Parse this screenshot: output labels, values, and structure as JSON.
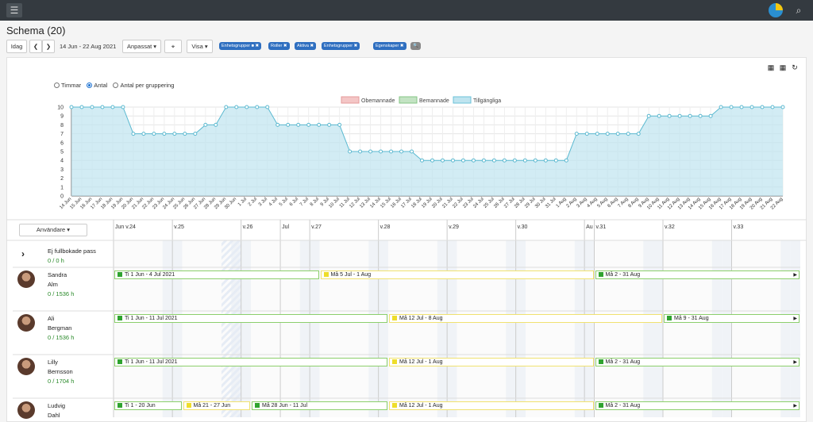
{
  "topbar": {
    "menu_icon": "hamburger-icon",
    "app_icon": "pie-chart-icon",
    "search_icon": "search-icon"
  },
  "page": {
    "title": "Schema (20)"
  },
  "toolbar": {
    "today": "Idag",
    "prev": "❮",
    "next": "❯",
    "date_range": "14 Jun - 22 Aug 2021",
    "custom": "Anpassat ▾",
    "target": "⌖",
    "show": "Visa ▾"
  },
  "filters": [
    {
      "label": "Enhetsgrupper ■ ✖"
    },
    {
      "label": "Roller ✖"
    },
    {
      "label": "Aktiva ✖"
    },
    {
      "label": "Enhetsgrupper ✖"
    },
    {
      "label": "Egenskaper ✖"
    },
    {
      "label": "🔍"
    }
  ],
  "panel_icons": {
    "calendar_add": "▦",
    "calendar_check": "▦",
    "refresh": "↻"
  },
  "chart_options": {
    "hours": "Timmar",
    "count": "Antal",
    "count_group": "Antal per gruppering",
    "selected": "Antal"
  },
  "chart_data": {
    "type": "area",
    "legend": [
      "Obemannade",
      "Bemannade",
      "Tillgängliga"
    ],
    "legend_colors": [
      "#f4c6c6",
      "#c3e3c3",
      "#bfe4ef"
    ],
    "ylim": [
      0,
      10
    ],
    "yticks": [
      "0",
      "1",
      "2",
      "3",
      "4",
      "5",
      "6",
      "7",
      "8",
      "9",
      "10"
    ],
    "x": [
      "14 Jun",
      "15 Jun",
      "16 Jun",
      "17 Jun",
      "18 Jun",
      "19 Jun",
      "20 Jun",
      "21 Jun",
      "22 Jun",
      "23 Jun",
      "24 Jun",
      "25 Jun",
      "26 Jun",
      "27 Jun",
      "28 Jun",
      "29 Jun",
      "30 Jun",
      "1 Jul",
      "2 Jul",
      "3 Jul",
      "4 Jul",
      "5 Jul",
      "6 Jul",
      "7 Jul",
      "8 Jul",
      "9 Jul",
      "10 Jul",
      "11 Jul",
      "12 Jul",
      "13 Jul",
      "14 Jul",
      "15 Jul",
      "16 Jul",
      "17 Jul",
      "18 Jul",
      "19 Jul",
      "20 Jul",
      "21 Jul",
      "22 Jul",
      "23 Jul",
      "24 Jul",
      "25 Jul",
      "26 Jul",
      "27 Jul",
      "28 Jul",
      "29 Jul",
      "30 Jul",
      "31 Jul",
      "1 Aug",
      "2 Aug",
      "3 Aug",
      "4 Aug",
      "5 Aug",
      "6 Aug",
      "7 Aug",
      "8 Aug",
      "9 Aug",
      "10 Aug",
      "11 Aug",
      "12 Aug",
      "13 Aug",
      "14 Aug",
      "15 Aug",
      "16 Aug",
      "17 Aug",
      "18 Aug",
      "19 Aug",
      "20 Aug",
      "21 Aug",
      "22 Aug"
    ],
    "series": [
      {
        "name": "Tillgängliga",
        "values": [
          10,
          10,
          10,
          10,
          10,
          10,
          7,
          7,
          7,
          7,
          7,
          7,
          7,
          8,
          8,
          10,
          10,
          10,
          10,
          10,
          8,
          8,
          8,
          8,
          8,
          8,
          8,
          5,
          5,
          5,
          5,
          5,
          5,
          5,
          4,
          4,
          4,
          4,
          4,
          4,
          4,
          4,
          4,
          4,
          4,
          4,
          4,
          4,
          4,
          7,
          7,
          7,
          7,
          7,
          7,
          7,
          9,
          9,
          9,
          9,
          9,
          9,
          9,
          10,
          10,
          10,
          10,
          10,
          10,
          10
        ],
        "color": "#bfe4ef",
        "line": "#5bb9d0"
      }
    ]
  },
  "grid": {
    "users_button": "Användare ▾",
    "weeks": [
      {
        "label": "Jun v.24"
      },
      {
        "label": "v.25"
      },
      {
        "label": "v.26"
      },
      {
        "label": "Jul"
      },
      {
        "label": "v.27"
      },
      {
        "label": "v.28"
      },
      {
        "label": "v.29"
      },
      {
        "label": "v.30"
      },
      {
        "label": "Au"
      },
      {
        "label": "v.31"
      },
      {
        "label": "v.32"
      },
      {
        "label": "v.33"
      }
    ],
    "unbooked": {
      "title": "Ej fullbokade pass",
      "hours": "0 / 0 h"
    },
    "rows": [
      {
        "first": "Sandra",
        "last": "Alm",
        "hours": "0 / 1536 h",
        "bars": [
          {
            "text": "Ti 1 Jun - 4 Jul 2021"
          },
          {
            "text": "Må 5 Jul - 1 Aug"
          },
          {
            "text": "Må 2 - 31 Aug"
          }
        ]
      },
      {
        "first": "Ali",
        "last": "Bergman",
        "hours": "0 / 1536 h",
        "bars": [
          {
            "text": "Ti 1 Jun - 11 Jul 2021"
          },
          {
            "text": "Må 12 Jul - 8 Aug"
          },
          {
            "text": "Må 9 - 31 Aug"
          }
        ]
      },
      {
        "first": "Lilly",
        "last": "Bernsson",
        "hours": "0 / 1704 h",
        "bars": [
          {
            "text": "Ti 1 Jun - 11 Jul 2021"
          },
          {
            "text": "Må 12 Jul - 1 Aug"
          },
          {
            "text": "Må 2 - 31 Aug"
          }
        ]
      },
      {
        "first": "Ludvig",
        "last": "Dahl",
        "hours": "",
        "bars": [
          {
            "text": "Ti 1 - 20 Jun"
          },
          {
            "text": "Må 21 - 27 Jun"
          },
          {
            "text": "Må 28 Jun - 11 Jul"
          },
          {
            "text": "Må 12 Jul - 1 Aug"
          },
          {
            "text": "Må 2 - 31 Aug"
          }
        ]
      }
    ]
  }
}
